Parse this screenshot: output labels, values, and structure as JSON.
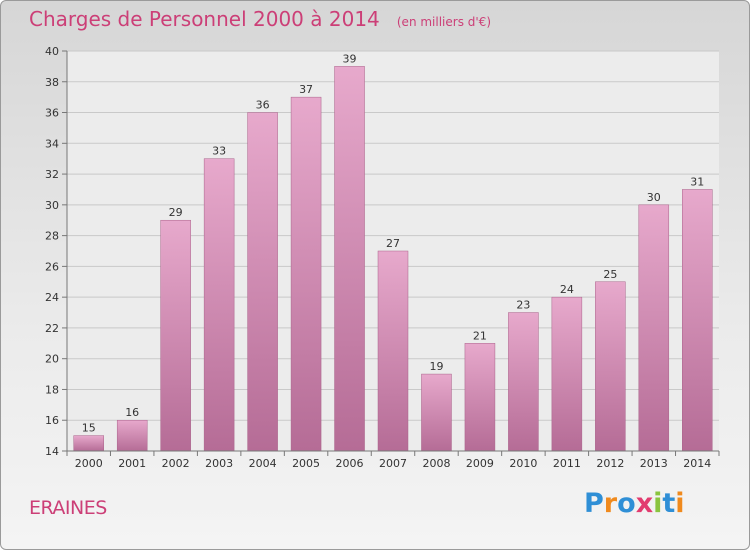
{
  "chart_data": {
    "type": "bar",
    "title": "Charges de Personnel 2000 à 2014",
    "subtitle": "(en milliers d'€)",
    "categories": [
      "2000",
      "2001",
      "2002",
      "2003",
      "2004",
      "2005",
      "2006",
      "2007",
      "2008",
      "2009",
      "2010",
      "2011",
      "2012",
      "2013",
      "2014"
    ],
    "values": [
      15,
      16,
      29,
      33,
      36,
      37,
      39,
      27,
      19,
      21,
      23,
      24,
      25,
      30,
      31
    ],
    "ylim": [
      14,
      40
    ],
    "yticks": [
      14,
      16,
      18,
      20,
      22,
      24,
      26,
      28,
      30,
      32,
      34,
      36,
      38,
      40
    ],
    "grid": true,
    "bar_color": "#d88bb5"
  },
  "commune": "ERAINES",
  "logo": {
    "text": "Proxiti",
    "colors": [
      "#2f8fd6",
      "#f08a1d",
      "#2f8fd6",
      "#e23b6f",
      "#8ac43f",
      "#2f8fd6",
      "#f08a1d"
    ]
  }
}
